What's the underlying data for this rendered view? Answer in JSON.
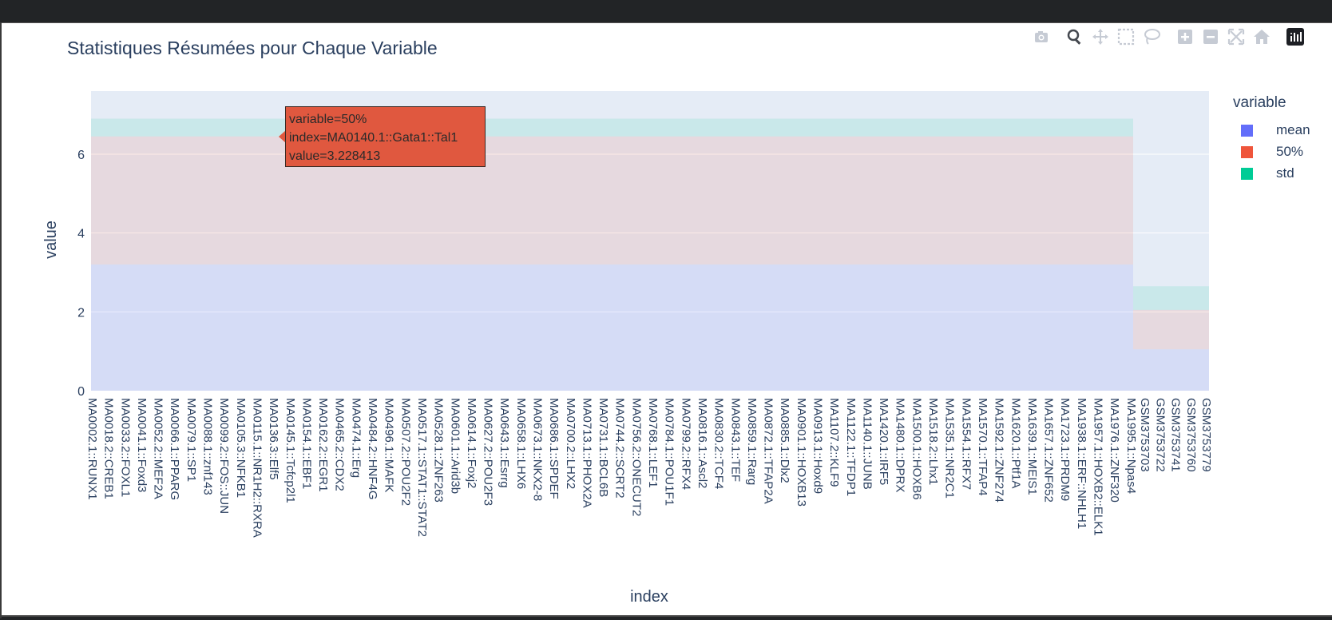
{
  "toolbar": {
    "icons": [
      "camera-icon",
      "zoom-icon",
      "pan-icon",
      "box-select-icon",
      "lasso-select-icon",
      "zoom-in-icon",
      "zoom-out-icon",
      "autoscale-icon",
      "reset-axes-icon",
      "plotly-logo-icon"
    ]
  },
  "hover": {
    "line1": "variable=50%",
    "line2": "index=MA0140.1::Gata1::Tal1",
    "line3": "value=3.228413"
  },
  "chart_data": {
    "type": "bar",
    "barmode": "stack",
    "title": "Statistiques Résumées pour Chaque Variable",
    "xlabel": "index",
    "ylabel": "value",
    "ylim": [
      0,
      7.6
    ],
    "yticks": [
      0,
      2,
      4,
      6
    ],
    "grid": true,
    "legend": {
      "title": "variable",
      "position": "top-right"
    },
    "x_tick_labels": [
      "MA0002.1::RUNX1",
      "MA0018.2::CREB1",
      "MA0033.2::FOXL1",
      "MA0041.1::Foxd3",
      "MA0052.2::MEF2A",
      "MA0066.1::PPARG",
      "MA0079.1::SP1",
      "MA0088.1::znf143",
      "MA0099.2::FOS::JUN",
      "MA0105.3::NFKB1",
      "MA0115.1::NR1H2::RXRA",
      "MA0136.3::Elf5",
      "MA0145.1::Tcfcp2l1",
      "MA0154.1::EBF1",
      "MA0162.2::EGR1",
      "MA0465.2::CDX2",
      "MA0474.1::Erg",
      "MA0484.2::HNF4G",
      "MA0496.1::MAFK",
      "MA0507.2::POU2F2",
      "MA0517.1::STAT1::STAT2",
      "MA0528.1::ZNF263",
      "MA0601.1::Arid3b",
      "MA0614.1::Foxj2",
      "MA0627.2::POU2F3",
      "MA0643.1::Esrrg",
      "MA0658.1::LHX6",
      "MA0673.1::NKX2-8",
      "MA0686.1::SPDEF",
      "MA0700.2::LHX2",
      "MA0713.1::PHOX2A",
      "MA0731.1::BCL6B",
      "MA0744.2::SCRT2",
      "MA0756.2::ONECUT2",
      "MA0768.1::LEF1",
      "MA0784.1::POU1F1",
      "MA0799.2::RFX4",
      "MA0816.1::Ascl2",
      "MA0830.2::TCF4",
      "MA0843.1::TEF",
      "MA0859.1::Rarg",
      "MA0872.1::TFAP2A",
      "MA0885.1::Dlx2",
      "MA0901.1::HOXB13",
      "MA0913.1::Hoxd9",
      "MA1107.2::KLF9",
      "MA1122.1::TFDP1",
      "MA1140.1::JUNB",
      "MA1420.1::IRF5",
      "MA1480.1::DPRX",
      "MA1500.1::HOXB6",
      "MA1518.2::Lhx1",
      "MA1535.1::NR2C1",
      "MA1554.1::RFX7",
      "MA1570.1::TFAP4",
      "MA1592.1::ZNF274",
      "MA1620.1::Ptf1A",
      "MA1639.1::MEIS1",
      "MA1657.1::ZNF652",
      "MA1723.1::PRDM9",
      "MA1938.1::ERF::NHLH1",
      "MA1957.1::HOXB2::ELK1",
      "MA1976.1::ZNF320",
      "MA1995.1::Npas4",
      "GSM3753703",
      "GSM3753722",
      "GSM3753741",
      "GSM3753760",
      "GSM3753779"
    ],
    "series": [
      {
        "name": "mean",
        "color": "#636efa",
        "motif_value": 3.2,
        "gsm_value": 1.05
      },
      {
        "name": "50%",
        "color": "#ef553b",
        "motif_value": 3.25,
        "gsm_value": 1.0
      },
      {
        "name": "std",
        "color": "#00cc96",
        "motif_value": 0.45,
        "gsm_value": 0.6
      }
    ],
    "bar_opacity": 0.12
  }
}
